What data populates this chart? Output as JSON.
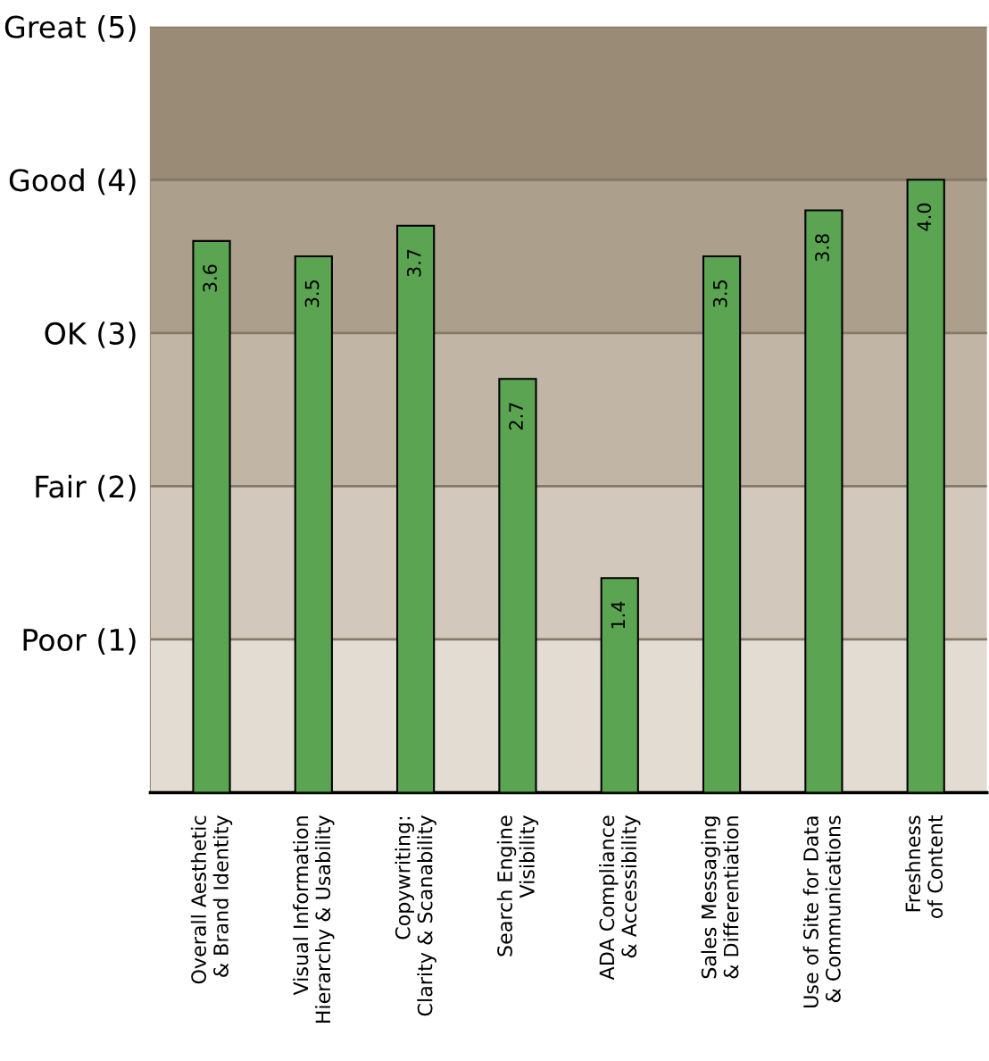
{
  "chart_data": {
    "type": "bar",
    "categories": [
      "Overall Aesthetic\n& Brand Identity",
      "Visual Information\nHierarchy & Usability",
      "Copywriting:\nClarity & Scanability",
      "Search Engine\nVisibility",
      "ADA Compliance\n& Accessibility",
      "Sales Messaging\n& Differentiation",
      "Use of Site for Data\n& Communications",
      "Freshness\nof Content"
    ],
    "values": [
      3.6,
      3.5,
      3.7,
      2.7,
      1.4,
      3.5,
      3.8,
      4.0
    ],
    "color": "#5ba552",
    "value_labels": [
      "3.6",
      "3.5",
      "3.7",
      "2.7",
      "1.4",
      "3.5",
      "3.8",
      "4.0"
    ],
    "ylim": [
      0,
      5
    ],
    "yticks": [
      {
        "value": 1,
        "label": "Poor (1)"
      },
      {
        "value": 2,
        "label": "Fair (2)"
      },
      {
        "value": 3,
        "label": "OK (3)"
      },
      {
        "value": 4,
        "label": "Good (4)"
      },
      {
        "value": 5,
        "label": "Great (5)"
      }
    ],
    "grid": "y",
    "bands": [
      {
        "axis": "y",
        "from": 0,
        "to": 1,
        "color": "#e2dcd3"
      },
      {
        "axis": "y",
        "from": 1,
        "to": 2,
        "color": "#d2c8bb"
      },
      {
        "axis": "y",
        "from": 2,
        "to": 3,
        "color": "#c1b6a6"
      },
      {
        "axis": "y",
        "from": 3,
        "to": 4,
        "color": "#ac9f8c"
      },
      {
        "axis": "y",
        "from": 4,
        "to": 5,
        "color": "#998b76"
      }
    ]
  }
}
